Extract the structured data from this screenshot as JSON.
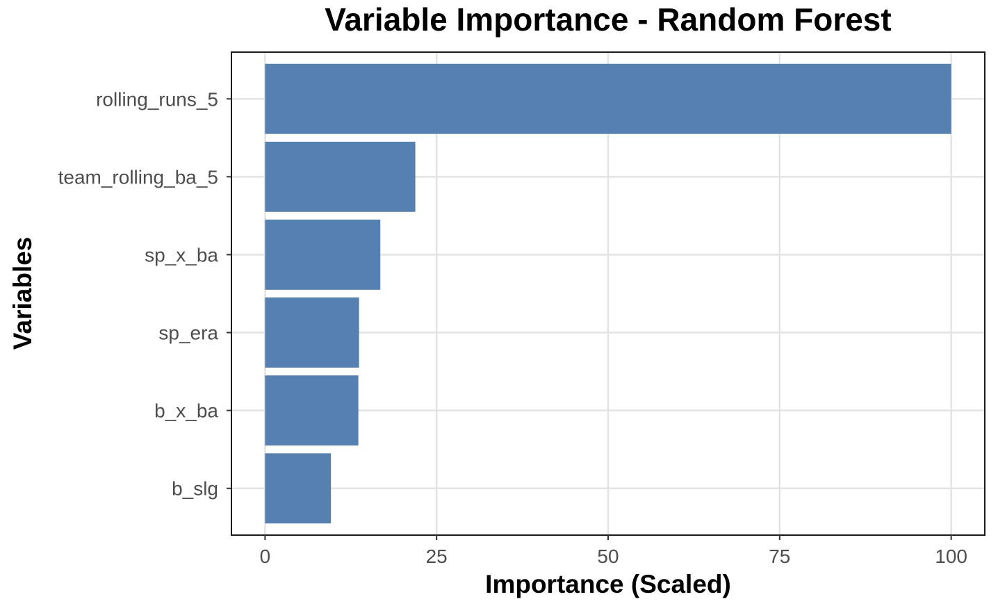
{
  "chart_data": {
    "type": "bar",
    "orientation": "horizontal",
    "title": "Variable Importance - Random Forest",
    "xlabel": "Importance (Scaled)",
    "ylabel": "Variables",
    "categories": [
      "rolling_runs_5",
      "team_rolling_ba_5",
      "sp_x_ba",
      "sp_era",
      "b_x_ba",
      "b_slg"
    ],
    "values": [
      100,
      21.9,
      16.8,
      13.7,
      13.6,
      9.6
    ],
    "xlim": [
      -4.9,
      104.9
    ],
    "xticks": [
      0,
      25,
      50,
      75,
      100
    ],
    "xtick_labels": [
      "0",
      "25",
      "50",
      "75",
      "100"
    ],
    "grid": true,
    "legend": "none",
    "colors": {
      "bar": "#5580b0",
      "grid": "#e3e3e3",
      "border": "#1a1a1a",
      "tick_text": "#4d4d4d",
      "title_text": "#000000"
    }
  }
}
